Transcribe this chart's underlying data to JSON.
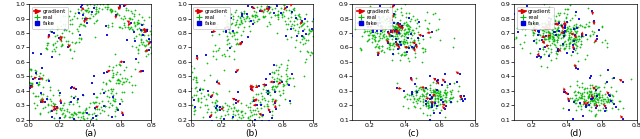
{
  "panels": [
    "(a)",
    "(b)",
    "(c)",
    "(d)"
  ],
  "legend_labels": [
    "gradient",
    "real",
    "fake"
  ],
  "real_color": "#00bb00",
  "fake_color": "#0000dd",
  "gradient_color": "#dd0000",
  "background_color": "#ffffff",
  "panel_ab_xlim": [
    0.0,
    0.8
  ],
  "panel_ab_ylim": [
    0.2,
    1.0
  ],
  "panel_cd_xlim": [
    0.1,
    0.8
  ],
  "panel_cd_ylim": [
    0.1,
    0.9
  ],
  "n_real": 500,
  "n_fake": 100,
  "n_gradient": 40,
  "real_marker_size": 3,
  "fake_marker_size": 4,
  "arrow_scale": 0.03
}
